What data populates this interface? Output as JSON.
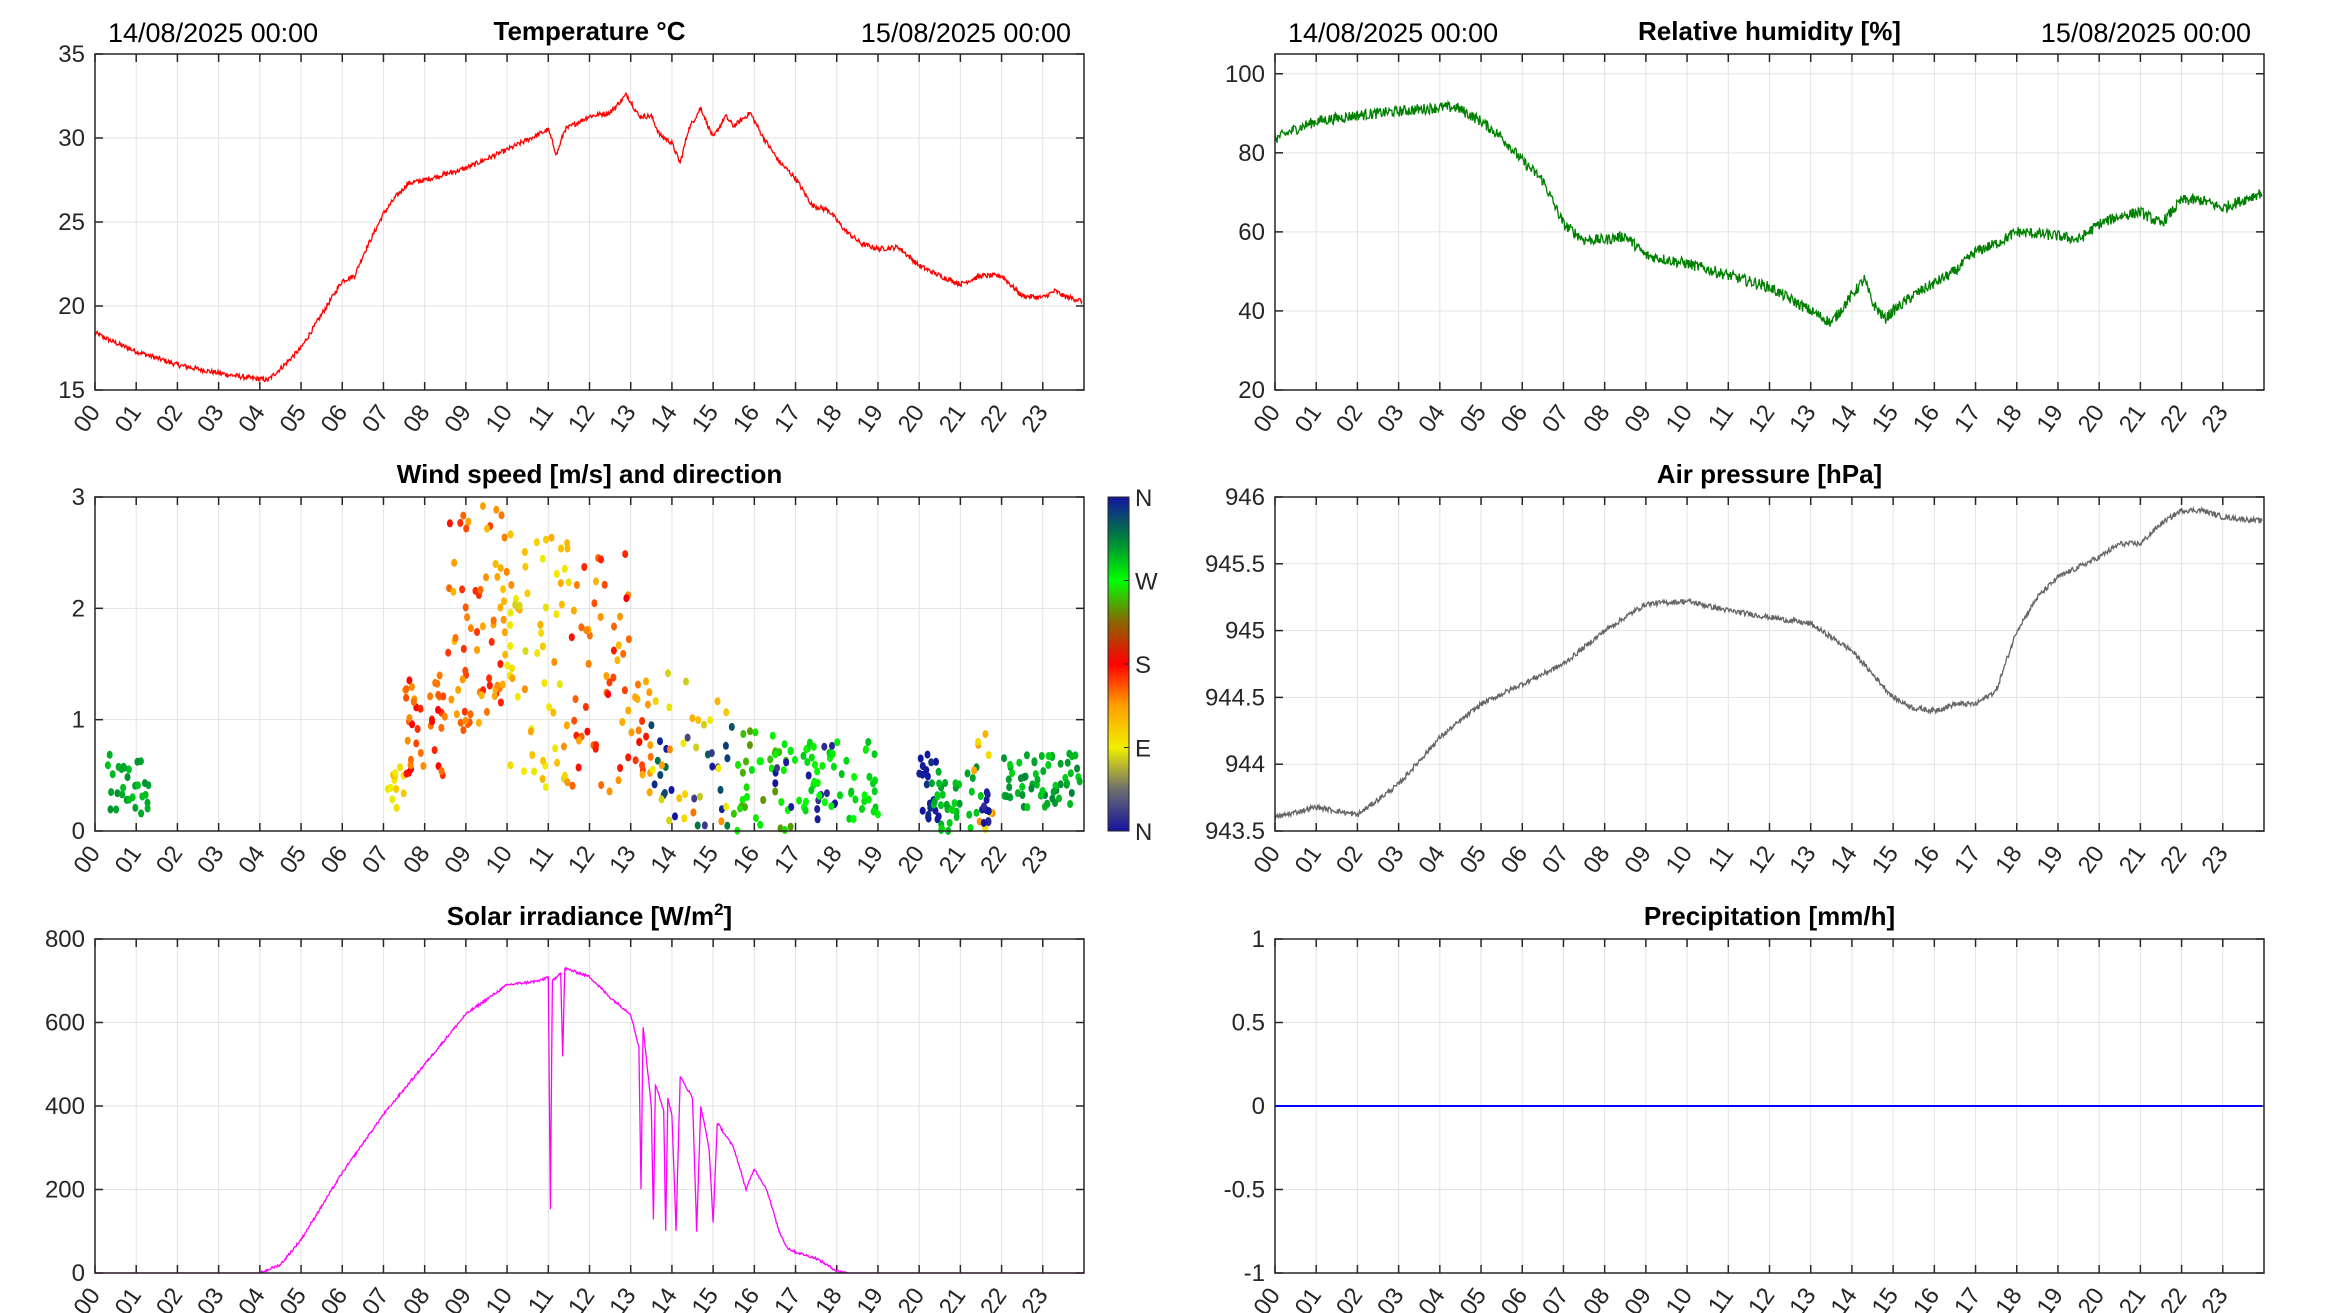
{
  "header": {
    "start_date": "14/08/2025 00:00",
    "end_date": "15/08/2025 00:00"
  },
  "colors": {
    "temperature": "#ff0000",
    "humidity": "#008000",
    "pressure": "#666666",
    "solar": "#ff00ff",
    "precipitation": "#0000ff",
    "grid": "#e3e3e3"
  },
  "chart_data": [
    {
      "id": "temperature",
      "type": "line",
      "title": "Temperature °C",
      "xlim": [
        0,
        24
      ],
      "ylim": [
        15,
        35
      ],
      "yticks": [
        "15",
        "20",
        "25",
        "30",
        "35"
      ],
      "ytick_values": [
        15,
        20,
        25,
        30,
        35
      ],
      "xtick_labels": [
        "00",
        "01",
        "02",
        "03",
        "04",
        "05",
        "06",
        "07",
        "08",
        "09",
        "10",
        "11",
        "12",
        "13",
        "14",
        "15",
        "16",
        "17",
        "18",
        "19",
        "20",
        "21",
        "22",
        "23"
      ],
      "x": [
        0,
        0.5,
        1,
        2,
        3,
        3.8,
        4.2,
        4.6,
        5,
        5.5,
        6,
        6.3,
        6.5,
        7,
        7.3,
        7.6,
        8,
        9,
        10,
        11,
        11.2,
        11.4,
        12,
        12.5,
        12.9,
        13.2,
        13.5,
        13.7,
        14,
        14.2,
        14.4,
        14.7,
        15,
        15.3,
        15.5,
        15.9,
        16.2,
        16.6,
        17,
        17.4,
        17.8,
        18.2,
        18.6,
        19,
        19.5,
        20,
        20.5,
        21,
        21.5,
        22,
        22.5,
        23,
        23.3,
        23.5,
        23.95
      ],
      "y": [
        18.4,
        17.8,
        17.3,
        16.5,
        16.0,
        15.7,
        15.6,
        16.5,
        17.5,
        19.5,
        21.5,
        21.8,
        23,
        25.5,
        26.5,
        27.3,
        27.5,
        28.2,
        29.3,
        30.5,
        29,
        30.5,
        31.3,
        31.5,
        32.6,
        31.3,
        31.3,
        30.2,
        29.7,
        28.5,
        30.5,
        31.8,
        30.0,
        31.3,
        30.7,
        31.5,
        30.1,
        28.6,
        27.6,
        26,
        25.7,
        24.5,
        23.7,
        23.4,
        23.5,
        22.4,
        21.8,
        21.3,
        21.8,
        21.8,
        20.6,
        20.5,
        20.9,
        20.6,
        20.3
      ],
      "noise": 0.15
    },
    {
      "id": "humidity",
      "type": "line",
      "title": "Relative humidity [%]",
      "xlim": [
        0,
        24
      ],
      "ylim": [
        20,
        105
      ],
      "yticks": [
        "20",
        "40",
        "60",
        "80",
        "100"
      ],
      "ytick_values": [
        20,
        40,
        60,
        80,
        100
      ],
      "xtick_labels": [
        "00",
        "01",
        "02",
        "03",
        "04",
        "05",
        "06",
        "07",
        "08",
        "09",
        "10",
        "11",
        "12",
        "13",
        "14",
        "15",
        "16",
        "17",
        "18",
        "19",
        "20",
        "21",
        "22",
        "23"
      ],
      "x": [
        0,
        0.5,
        1,
        2,
        3,
        4,
        4.4,
        5,
        5.5,
        6,
        6.5,
        7,
        7.5,
        8,
        8.5,
        9,
        10,
        11,
        12,
        12.5,
        13,
        13.5,
        14,
        14.3,
        14.5,
        14.8,
        15,
        15.5,
        16,
        16.5,
        17,
        17.5,
        18,
        19,
        19.5,
        20,
        20.5,
        21,
        21.5,
        22,
        22.5,
        23,
        23.95
      ],
      "y": [
        83.5,
        86,
        88,
        89.5,
        90.5,
        91.5,
        91.5,
        88,
        84,
        78,
        73,
        62,
        58,
        58,
        59,
        54,
        52,
        49,
        46,
        43,
        40,
        37,
        44,
        48,
        42,
        38,
        40,
        44,
        47,
        50,
        55,
        57,
        60,
        59,
        58,
        62,
        64,
        65,
        62,
        68,
        68,
        66,
        70
      ],
      "noise": 1.4
    },
    {
      "id": "wind",
      "type": "scatter",
      "title": "Wind speed [m/s] and direction",
      "xlim": [
        0,
        24
      ],
      "ylim": [
        0,
        3
      ],
      "yticks": [
        "0",
        "1",
        "2",
        "3"
      ],
      "ytick_values": [
        0,
        1,
        2,
        3
      ],
      "xtick_labels": [
        "00",
        "01",
        "02",
        "03",
        "04",
        "05",
        "06",
        "07",
        "08",
        "09",
        "10",
        "11",
        "12",
        "13",
        "14",
        "15",
        "16",
        "17",
        "18",
        "19",
        "20",
        "21",
        "22",
        "23"
      ],
      "colorbar": {
        "labels": [
          "N",
          "E",
          "S",
          "W",
          "N"
        ],
        "values_deg": [
          0,
          90,
          180,
          270,
          360
        ]
      },
      "clusters": [
        {
          "hours": [
            0.3,
            1.3
          ],
          "speed": [
            0.1,
            0.7
          ],
          "dir": 300,
          "spread": 10,
          "count": 30
        },
        {
          "hours": [
            7.1,
            7.5
          ],
          "speed": [
            0.2,
            0.6
          ],
          "dir": 100,
          "spread": 20,
          "count": 12
        },
        {
          "hours": [
            7.5,
            8.5
          ],
          "speed": [
            0.5,
            1.4
          ],
          "dir": 160,
          "spread": 25,
          "count": 40
        },
        {
          "hours": [
            8.5,
            10
          ],
          "speed": [
            0.9,
            3.0
          ],
          "dir": 145,
          "spread": 30,
          "count": 70
        },
        {
          "hours": [
            10,
            11.5
          ],
          "speed": [
            0.2,
            2.7
          ],
          "dir": 110,
          "spread": 30,
          "count": 60
        },
        {
          "hours": [
            11.5,
            13
          ],
          "speed": [
            0.3,
            2.5
          ],
          "dir": 150,
          "spread": 30,
          "count": 50
        },
        {
          "hours": [
            13,
            13.5
          ],
          "speed": [
            0.3,
            1.4
          ],
          "dir": 155,
          "spread": 30,
          "count": 20
        },
        {
          "hours": [
            13.5,
            15.5
          ],
          "speed": [
            0.0,
            1.0
          ],
          "dir": 350,
          "spread": 40,
          "count": 25
        },
        {
          "hours": [
            13.5,
            15.5
          ],
          "speed": [
            0.0,
            1.5
          ],
          "dir": 110,
          "spread": 40,
          "count": 25
        },
        {
          "hours": [
            15.5,
            17
          ],
          "speed": [
            0.0,
            0.9
          ],
          "dir": 260,
          "spread": 20,
          "count": 40
        },
        {
          "hours": [
            16.5,
            18
          ],
          "speed": [
            0.0,
            0.8
          ],
          "dir": 10,
          "spread": 15,
          "count": 15
        },
        {
          "hours": [
            17,
            19
          ],
          "speed": [
            0.1,
            0.8
          ],
          "dir": 280,
          "spread": 15,
          "count": 50
        },
        {
          "hours": [
            20,
            20.5
          ],
          "speed": [
            0.1,
            0.7
          ],
          "dir": 355,
          "spread": 8,
          "count": 20
        },
        {
          "hours": [
            20.3,
            21.5
          ],
          "speed": [
            0.0,
            0.6
          ],
          "dir": 295,
          "spread": 12,
          "count": 35
        },
        {
          "hours": [
            21.3,
            21.8
          ],
          "speed": [
            0.0,
            0.9
          ],
          "dir": 120,
          "spread": 30,
          "count": 10
        },
        {
          "hours": [
            21.5,
            21.8
          ],
          "speed": [
            0.0,
            0.4
          ],
          "dir": 5,
          "spread": 8,
          "count": 10
        },
        {
          "hours": [
            22,
            23.9
          ],
          "speed": [
            0.2,
            0.7
          ],
          "dir": 300,
          "spread": 15,
          "count": 60
        }
      ]
    },
    {
      "id": "pressure",
      "type": "line",
      "title": "Air pressure [hPa]",
      "xlim": [
        0,
        24
      ],
      "ylim": [
        943.5,
        946
      ],
      "yticks": [
        "943.5",
        "944",
        "944.5",
        "945",
        "945.5",
        "946"
      ],
      "ytick_values": [
        943.5,
        944,
        944.5,
        945,
        945.5,
        946
      ],
      "xtick_labels": [
        "00",
        "01",
        "02",
        "03",
        "04",
        "05",
        "06",
        "07",
        "08",
        "09",
        "10",
        "11",
        "12",
        "13",
        "14",
        "15",
        "16",
        "17",
        "18",
        "19",
        "20",
        "21",
        "22",
        "23"
      ],
      "x": [
        0,
        1,
        2,
        3,
        4,
        5,
        6,
        7,
        8,
        9,
        10,
        11,
        12,
        13,
        14,
        15,
        15.5,
        16,
        16.5,
        17,
        17.5,
        18,
        18.5,
        19,
        20,
        20.5,
        21,
        21.5,
        22,
        22.5,
        23,
        23.95
      ],
      "y": [
        943.6,
        943.68,
        943.62,
        943.85,
        944.2,
        944.45,
        944.6,
        944.75,
        945.0,
        945.2,
        945.22,
        945.15,
        945.1,
        945.05,
        944.85,
        944.5,
        944.42,
        944.4,
        944.45,
        944.45,
        944.55,
        945.0,
        945.25,
        945.4,
        945.55,
        945.65,
        945.65,
        945.8,
        945.9,
        945.9,
        945.85,
        945.82
      ],
      "noise": 0.02
    },
    {
      "id": "solar",
      "type": "line",
      "title": "Solar irradiance [W/m",
      "title_sup": "2",
      "title_end": "]",
      "xlim": [
        0,
        24
      ],
      "ylim": [
        0,
        800
      ],
      "yticks": [
        "0",
        "200",
        "400",
        "600",
        "800"
      ],
      "ytick_values": [
        0,
        200,
        400,
        600,
        800
      ],
      "xtick_labels": [
        "00",
        "01",
        "02",
        "03",
        "04",
        "05",
        "06",
        "07",
        "08",
        "09",
        "10",
        "11",
        "12",
        "13",
        "14",
        "15",
        "16",
        "17",
        "18",
        "19",
        "20",
        "21",
        "22",
        "23"
      ],
      "x": [
        0,
        4,
        4.5,
        5,
        5.5,
        6,
        7,
        8,
        9,
        10,
        10.8,
        11,
        11.05,
        11.1,
        11.3,
        11.35,
        11.4,
        12,
        12.5,
        13,
        13.2,
        13.25,
        13.3,
        13.5,
        13.55,
        13.6,
        13.8,
        13.85,
        13.9,
        14,
        14.1,
        14.2,
        14.5,
        14.6,
        14.7,
        14.9,
        15.0,
        15.1,
        15.5,
        15.8,
        16,
        16.3,
        16.6,
        16.8,
        17,
        17.5,
        18,
        18.3,
        24
      ],
      "y": [
        0,
        0,
        20,
        80,
        160,
        240,
        380,
        500,
        620,
        690,
        700,
        710,
        150,
        700,
        720,
        520,
        730,
        710,
        660,
        620,
        540,
        200,
        590,
        400,
        130,
        450,
        390,
        100,
        420,
        380,
        100,
        470,
        420,
        100,
        400,
        300,
        120,
        360,
        300,
        200,
        250,
        200,
        100,
        60,
        50,
        35,
        5,
        0,
        0
      ],
      "noise": 3
    },
    {
      "id": "precipitation",
      "type": "line",
      "title": "Precipitation [mm/h]",
      "xlim": [
        0,
        24
      ],
      "ylim": [
        -1,
        1
      ],
      "yticks": [
        "-1",
        "-0.5",
        "0",
        "0.5",
        "1"
      ],
      "ytick_values": [
        -1,
        -0.5,
        0,
        0.5,
        1
      ],
      "xtick_labels": [
        "00",
        "01",
        "02",
        "03",
        "04",
        "05",
        "06",
        "07",
        "08",
        "09",
        "10",
        "11",
        "12",
        "13",
        "14",
        "15",
        "16",
        "17",
        "18",
        "19",
        "20",
        "21",
        "22",
        "23"
      ],
      "x": [
        0,
        23.95
      ],
      "y": [
        0,
        0
      ],
      "noise": 0
    }
  ]
}
